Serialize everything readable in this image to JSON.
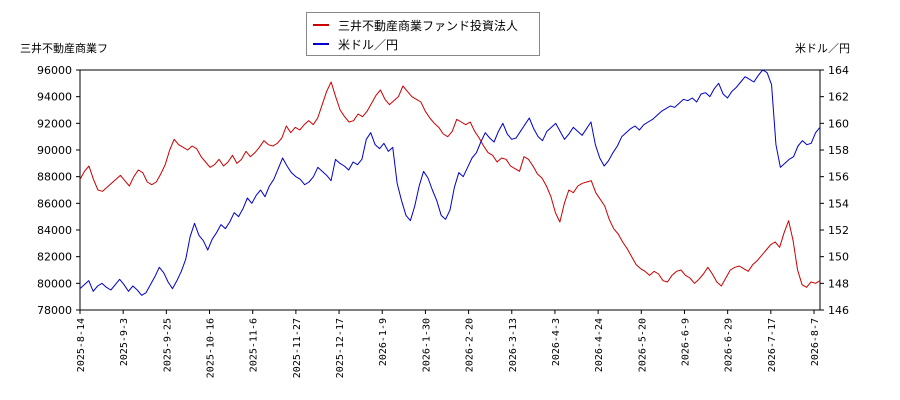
{
  "chart_data": {
    "type": "line",
    "left_axis_label": "三井不動産商業フ",
    "right_axis_label": "米ドル／円",
    "legend": {
      "position": "top-center"
    },
    "grid": false,
    "x_ticks": [
      "2025-8-14",
      "2025-9-3",
      "2025-9-25",
      "2025-10-16",
      "2025-11-6",
      "2025-11-27",
      "2025-12-17",
      "2026-1-9",
      "2026-1-30",
      "2026-2-20",
      "2026-3-13",
      "2026-4-3",
      "2026-4-24",
      "2026-5-20",
      "2026-6-9",
      "2026-6-29",
      "2026-7-17",
      "2026-8-7"
    ],
    "y_left": {
      "min": 78000,
      "max": 96000,
      "ticks": [
        78000,
        80000,
        82000,
        84000,
        86000,
        88000,
        90000,
        92000,
        94000,
        96000
      ]
    },
    "y_right": {
      "min": 146,
      "max": 164,
      "ticks": [
        146,
        148,
        150,
        152,
        154,
        156,
        158,
        160,
        162,
        164
      ]
    },
    "series": [
      {
        "name": "三井不動産商業ファンド投資法人",
        "axis": "left",
        "color": "#cc0000",
        "values": [
          87800,
          88400,
          88800,
          87800,
          87000,
          86900,
          87200,
          87500,
          87800,
          88100,
          87700,
          87300,
          88000,
          88500,
          88300,
          87600,
          87400,
          87600,
          88200,
          88900,
          90000,
          90800,
          90400,
          90200,
          90000,
          90300,
          90100,
          89500,
          89100,
          88700,
          88900,
          89300,
          88800,
          89100,
          89600,
          89000,
          89300,
          89900,
          89500,
          89800,
          90200,
          90700,
          90400,
          90300,
          90500,
          90900,
          91800,
          91300,
          91700,
          91500,
          91900,
          92200,
          91900,
          92400,
          93400,
          94400,
          95100,
          94000,
          93000,
          92500,
          92100,
          92200,
          92700,
          92500,
          92900,
          93500,
          94100,
          94500,
          93800,
          93400,
          93700,
          94000,
          94800,
          94400,
          94000,
          93800,
          93600,
          92900,
          92400,
          92000,
          91700,
          91200,
          91000,
          91400,
          92300,
          92100,
          91900,
          92100,
          91400,
          90900,
          90300,
          89800,
          89600,
          89100,
          89400,
          89300,
          88800,
          88600,
          88400,
          89500,
          89300,
          88800,
          88200,
          87900,
          87300,
          86500,
          85300,
          84600,
          86000,
          87000,
          86800,
          87300,
          87500,
          87600,
          87700,
          86800,
          86300,
          85800,
          84800,
          84100,
          83700,
          83100,
          82600,
          82000,
          81400,
          81100,
          80900,
          80600,
          80900,
          80700,
          80200,
          80100,
          80600,
          80900,
          81000,
          80600,
          80400,
          80000,
          80300,
          80700,
          81200,
          80700,
          80100,
          79800,
          80400,
          81000,
          81200,
          81300,
          81100,
          80900,
          81400,
          81700,
          82100,
          82500,
          82900,
          83100,
          82700,
          83800,
          84700,
          83200,
          81000,
          79900,
          79700,
          80100,
          80000,
          80200
        ]
      },
      {
        "name": "米ドル／円",
        "axis": "right",
        "color": "#0000cc",
        "values": [
          147.6,
          147.9,
          148.2,
          147.4,
          147.8,
          148.0,
          147.7,
          147.5,
          147.9,
          148.3,
          147.9,
          147.4,
          147.8,
          147.5,
          147.1,
          147.3,
          147.9,
          148.5,
          149.2,
          148.8,
          148.1,
          147.6,
          148.2,
          148.9,
          149.8,
          151.5,
          152.5,
          151.6,
          151.2,
          150.5,
          151.3,
          151.8,
          152.4,
          152.1,
          152.6,
          153.3,
          153.0,
          153.6,
          154.4,
          154.0,
          154.6,
          155.0,
          154.5,
          155.3,
          155.8,
          156.6,
          157.4,
          156.8,
          156.3,
          156.0,
          155.8,
          155.4,
          155.6,
          156.0,
          156.7,
          156.4,
          156.1,
          155.7,
          157.3,
          157.0,
          156.8,
          156.5,
          157.1,
          156.9,
          157.3,
          158.8,
          159.3,
          158.4,
          158.1,
          158.5,
          157.9,
          158.2,
          155.5,
          154.2,
          153.1,
          152.7,
          153.8,
          155.3,
          156.4,
          155.9,
          155.0,
          154.2,
          153.1,
          152.8,
          153.5,
          155.2,
          156.3,
          156.0,
          156.7,
          157.4,
          157.8,
          158.6,
          159.3,
          158.9,
          158.6,
          159.4,
          160.0,
          159.2,
          158.8,
          158.9,
          159.4,
          159.9,
          160.4,
          159.6,
          159.0,
          158.7,
          159.4,
          159.7,
          160.0,
          159.4,
          158.8,
          159.2,
          159.7,
          159.4,
          159.1,
          159.6,
          160.1,
          158.4,
          157.4,
          156.8,
          157.2,
          157.8,
          158.3,
          159.0,
          159.3,
          159.6,
          159.8,
          159.5,
          159.9,
          160.1,
          160.3,
          160.6,
          160.9,
          161.1,
          161.3,
          161.2,
          161.5,
          161.8,
          161.7,
          161.9,
          161.6,
          162.2,
          162.3,
          162.0,
          162.6,
          163.0,
          162.2,
          161.9,
          162.4,
          162.7,
          163.1,
          163.5,
          163.3,
          163.1,
          163.6,
          164.0,
          163.8,
          162.9,
          158.4,
          156.7,
          157.0,
          157.3,
          157.5,
          158.3,
          158.7,
          158.4,
          158.5,
          159.3,
          159.7
        ]
      }
    ]
  }
}
